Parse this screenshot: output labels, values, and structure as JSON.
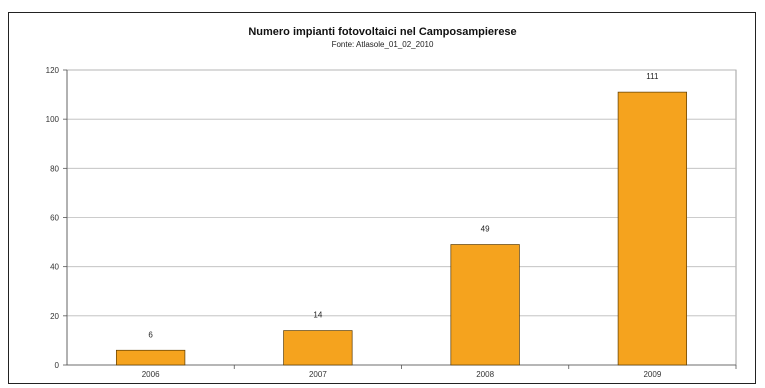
{
  "chart_data": {
    "type": "bar",
    "title": "Numero impianti fotovoltaici nel Camposampierese",
    "subtitle": "Fonte: Atlasole_01_02_2010",
    "categories": [
      "2006",
      "2007",
      "2008",
      "2009"
    ],
    "values": [
      6,
      14,
      49,
      111
    ],
    "data_labels": [
      "6",
      "14",
      "49",
      "111"
    ],
    "ylim": [
      0,
      120
    ],
    "yticks": [
      "0",
      "20",
      "40",
      "60",
      "80",
      "100",
      "120"
    ],
    "xlabel": "",
    "ylabel": "",
    "grid": true,
    "legend": "none",
    "bar_color": "#F5A31E",
    "bar_edge_color": "#5a3a00",
    "grid_color": "#bbbbbb"
  }
}
